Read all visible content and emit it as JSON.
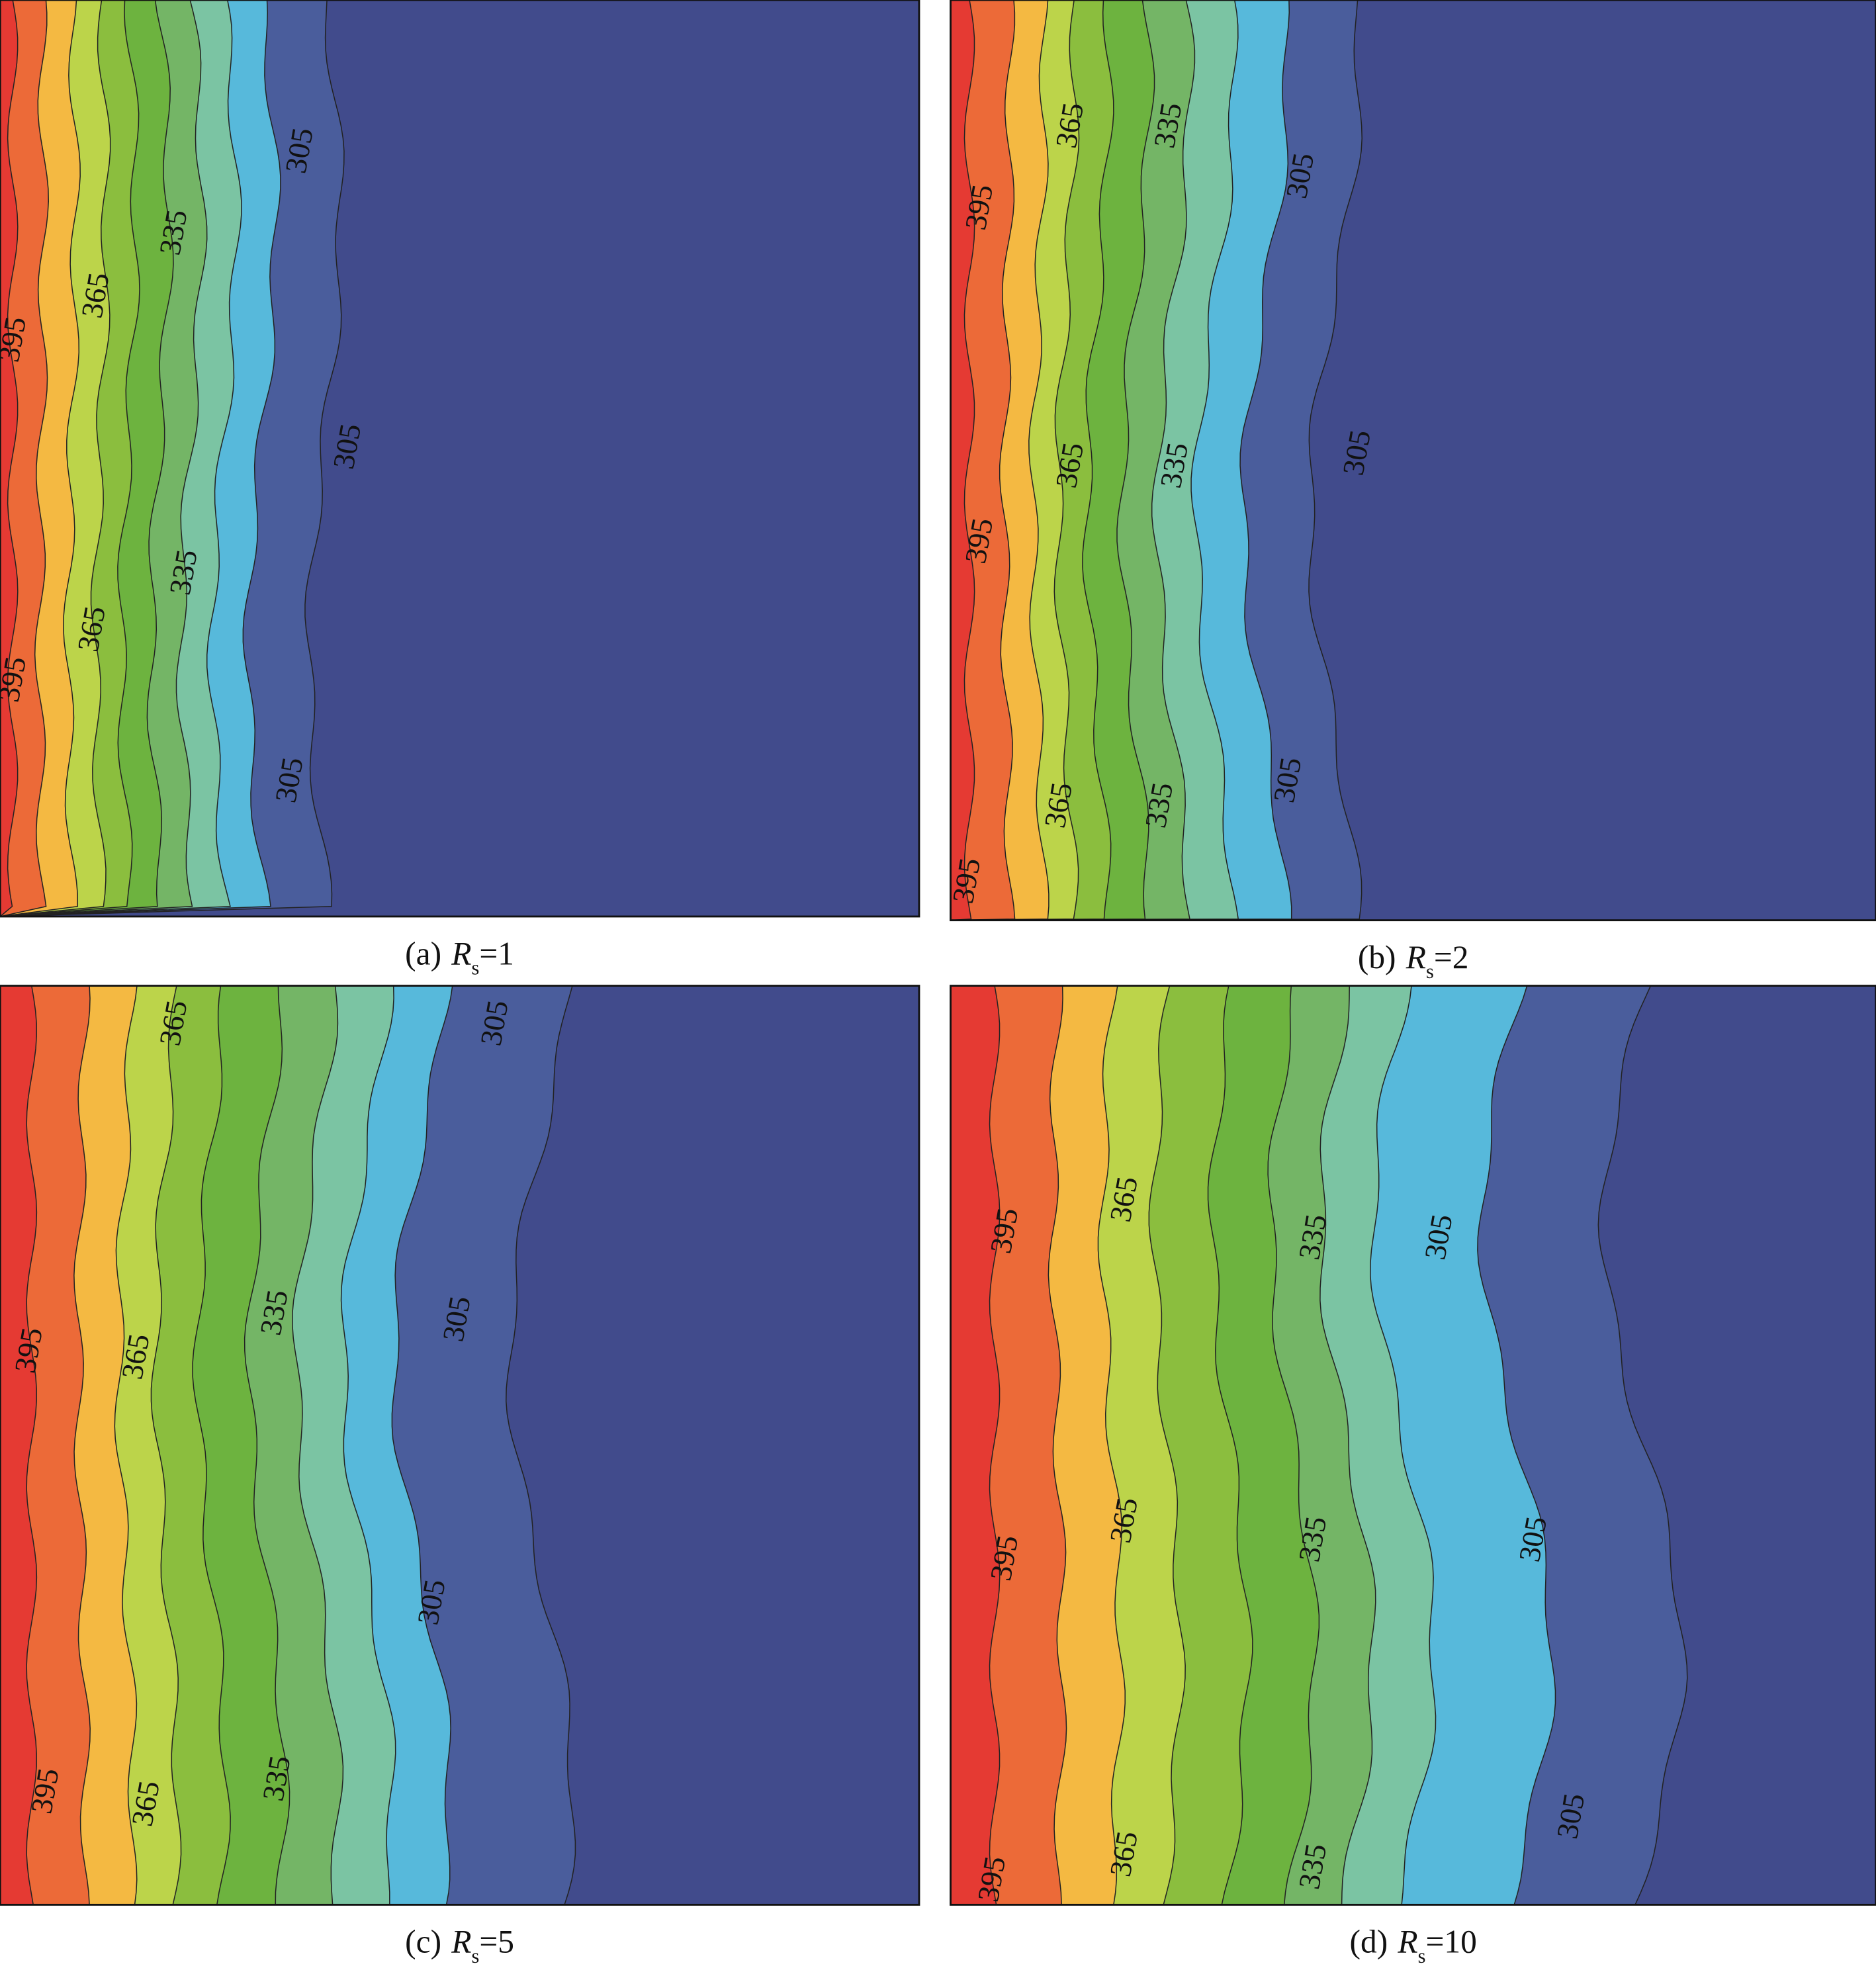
{
  "panels": [
    {
      "label": "(a)",
      "variable": "R",
      "subscript": "s",
      "value": "=1",
      "contour_labels": [
        "395",
        "395",
        "365",
        "365",
        "335",
        "335",
        "305",
        "305",
        "305"
      ]
    },
    {
      "label": "(b)",
      "variable": "R",
      "subscript": "s",
      "value": "=2",
      "contour_labels": [
        "395",
        "395",
        "395",
        "365",
        "365",
        "365",
        "335",
        "335",
        "335",
        "305",
        "305",
        "305"
      ]
    },
    {
      "label": "(c)",
      "variable": "R",
      "subscript": "s",
      "value": "=5",
      "contour_labels": [
        "395",
        "395",
        "365",
        "365",
        "365",
        "335",
        "335",
        "305",
        "305",
        "305"
      ]
    },
    {
      "label": "(d)",
      "variable": "R",
      "subscript": "s",
      "value": "=10",
      "contour_labels": [
        "395",
        "395",
        "395",
        "365",
        "365",
        "365",
        "335",
        "335",
        "335",
        "305",
        "305",
        "305"
      ]
    }
  ]
}
